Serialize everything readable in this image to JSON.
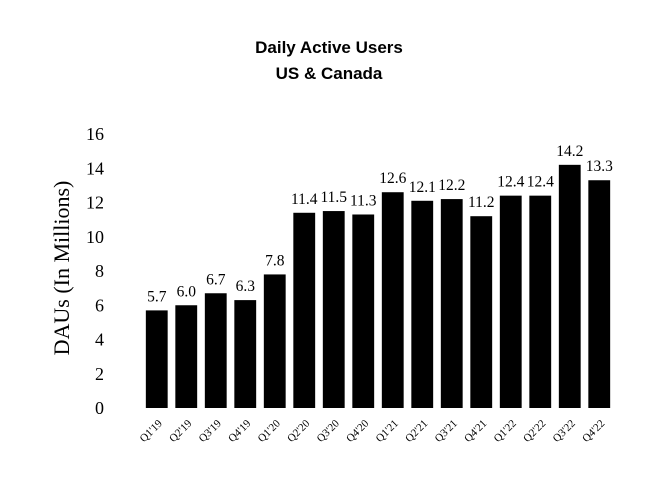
{
  "chart_data": {
    "type": "bar",
    "title": "Daily Active Users",
    "subtitle": "US & Canada",
    "xlabel": "",
    "ylabel": "DAUs (In Millions)",
    "ylim": [
      0,
      16
    ],
    "yticks": [
      0,
      2,
      4,
      6,
      8,
      10,
      12,
      14,
      16
    ],
    "grid": false,
    "legend": "none",
    "bar_color": "#000000",
    "categories": [
      "Q1'19",
      "Q2'19",
      "Q3'19",
      "Q4'19",
      "Q1'20",
      "Q2'20",
      "Q3'20",
      "Q4'20",
      "Q1'21",
      "Q2'21",
      "Q3'21",
      "Q4'21",
      "Q1'22",
      "Q2'22",
      "Q3'22",
      "Q4'22"
    ],
    "values": [
      5.7,
      6.0,
      6.7,
      6.3,
      7.8,
      11.4,
      11.5,
      11.3,
      12.6,
      12.1,
      12.2,
      11.2,
      12.4,
      12.4,
      14.2,
      13.3
    ],
    "data_labels": [
      "5.7",
      "6.0",
      "6.7",
      "6.3",
      "7.8",
      "11.4",
      "11.5",
      "11.3",
      "12.6",
      "12.1",
      "12.2",
      "11.2",
      "12.4",
      "12.4",
      "14.2",
      "13.3"
    ]
  }
}
